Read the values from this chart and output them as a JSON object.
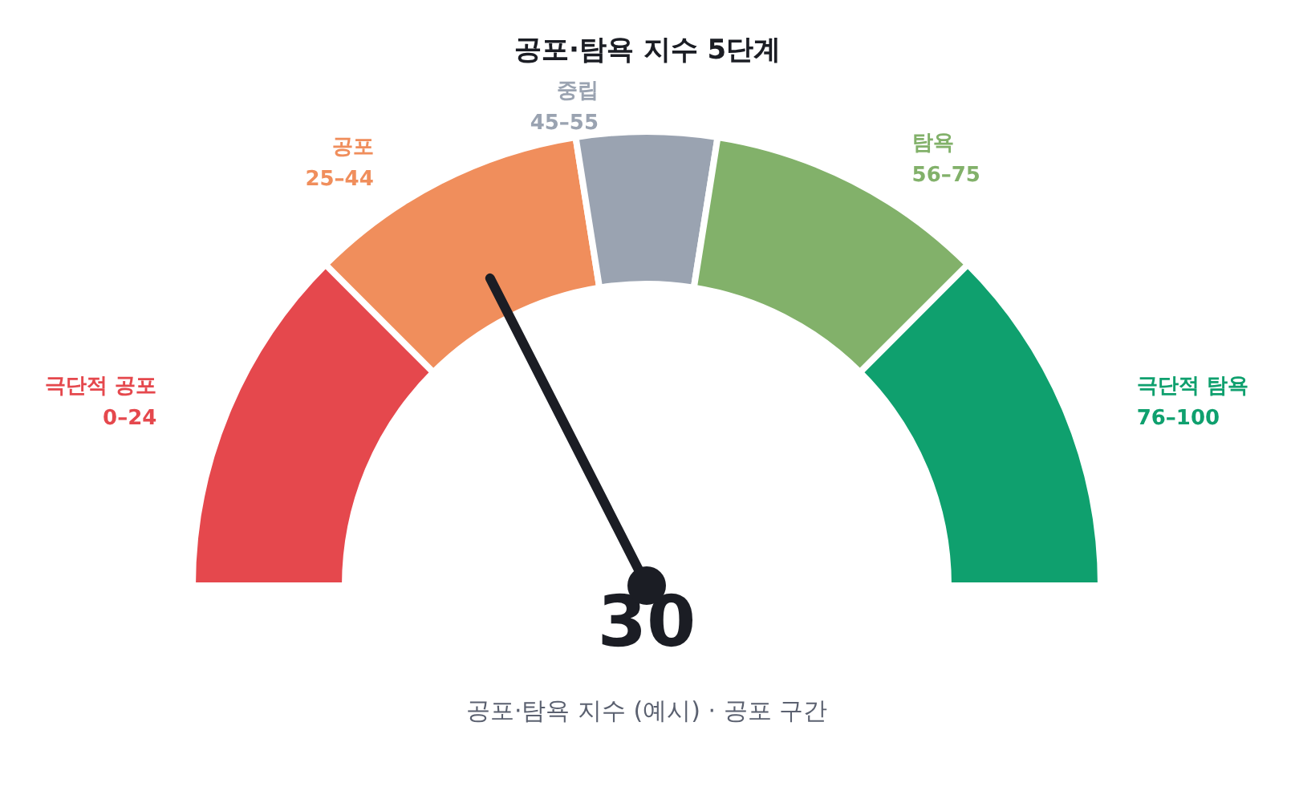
{
  "chart_data": {
    "type": "donut",
    "title": "공포·탐욕 지수 5단계",
    "categories": [
      "극단적 공포",
      "공포",
      "중립",
      "탐욕",
      "극단적 탐욕"
    ],
    "values": [
      25,
      20,
      10,
      20,
      25
    ],
    "value_labels": [
      "0–24",
      "25–44",
      "45–55",
      "56–75",
      "76–100"
    ],
    "colors": [
      "#e5484d",
      "#f08e5c",
      "#9aa3b1",
      "#82b16a",
      "#0fa06e"
    ],
    "needle": "공포",
    "annotations": [
      "30",
      "공포·탐욕 지수 (예시) · 공포 구간"
    ],
    "legend": false
  }
}
